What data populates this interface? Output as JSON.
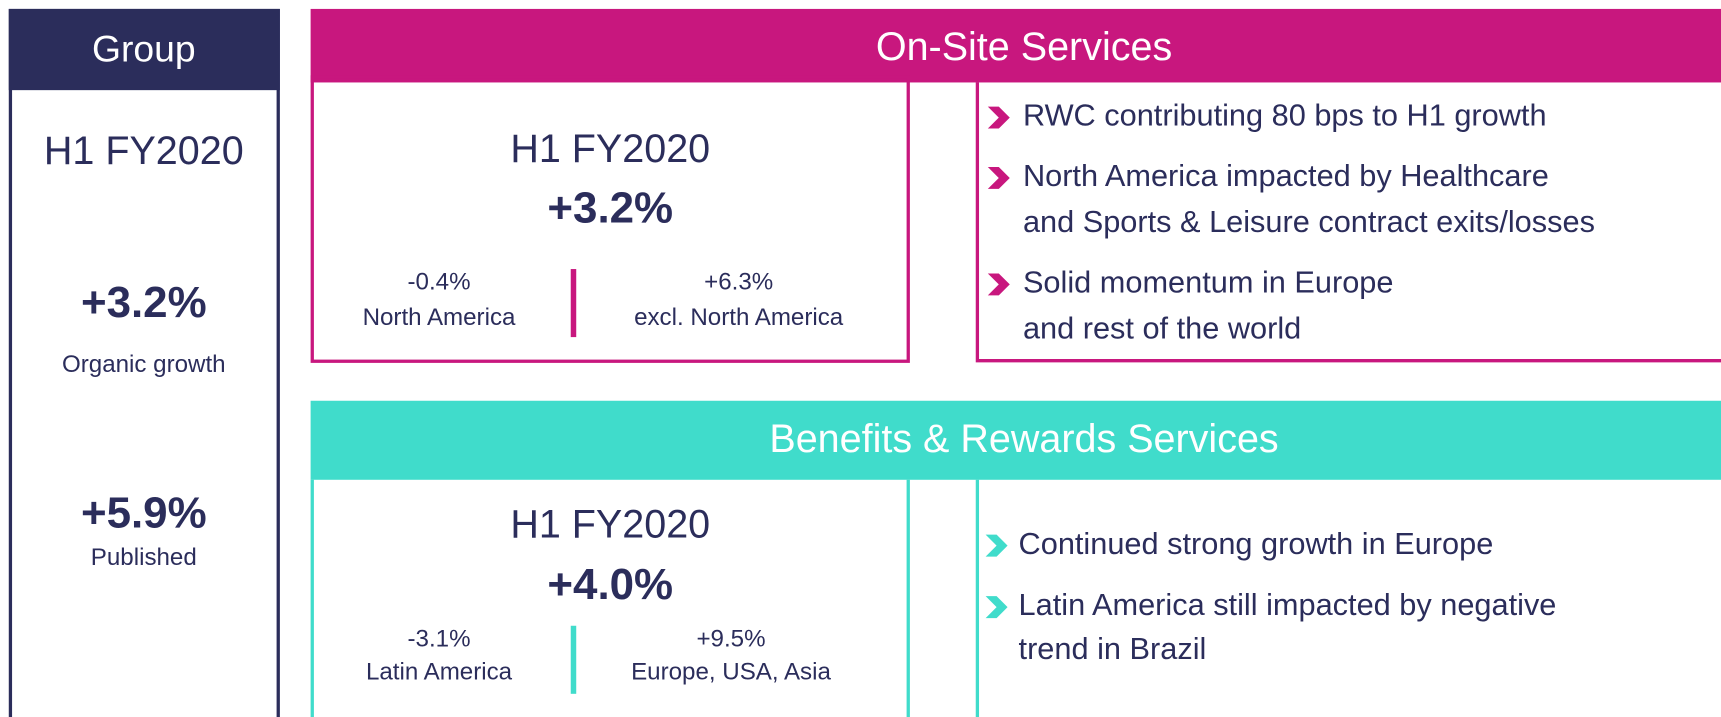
{
  "group": {
    "title": "Group",
    "period": "H1 FY2020",
    "metrics": [
      {
        "value": "+3.2%",
        "label": "Organic growth"
      },
      {
        "value": "+5.9%",
        "label": "Published"
      }
    ]
  },
  "on_site": {
    "title": "On-Site Services",
    "period": "H1 FY2020",
    "total": "+3.2%",
    "splits": [
      {
        "value": "-0.4%",
        "label": "North America"
      },
      {
        "value": "+6.3%",
        "label": "excl. North America"
      }
    ],
    "bullets": [
      [
        "RWC contributing 80 bps to H1 growth"
      ],
      [
        "North America impacted by Healthcare",
        "and Sports & Leisure contract exits/losses"
      ],
      [
        "Solid momentum in Europe",
        "and rest of the world"
      ]
    ]
  },
  "benefits": {
    "title": "Benefits & Rewards Services",
    "period": "H1 FY2020",
    "total": "+4.0%",
    "splits": [
      {
        "value": "-3.1%",
        "label": "Latin America"
      },
      {
        "value": "+9.5%",
        "label": "Europe, USA, Asia"
      }
    ],
    "bullets": [
      [
        "Continued strong growth in Europe"
      ],
      [
        "Latin America still impacted by negative",
        "trend in Brazil"
      ]
    ]
  }
}
